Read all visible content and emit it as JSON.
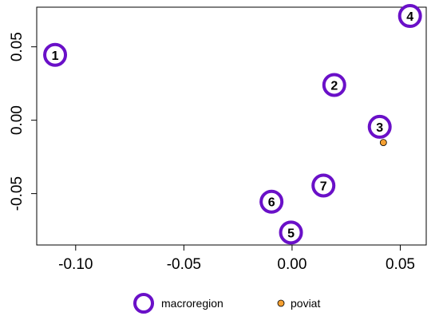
{
  "chart_data": {
    "type": "scatter",
    "title": "",
    "xlabel": "",
    "ylabel": "",
    "xlim": [
      -0.118,
      0.062
    ],
    "ylim": [
      -0.085,
      0.077
    ],
    "xticks": [
      {
        "value": -0.1,
        "label": "-0.10"
      },
      {
        "value": -0.05,
        "label": "-0.05"
      },
      {
        "value": 0.0,
        "label": "0.00"
      },
      {
        "value": 0.05,
        "label": "0.05"
      }
    ],
    "yticks": [
      {
        "value": -0.05,
        "label": "-0.05"
      },
      {
        "value": 0.0,
        "label": "0.00"
      },
      {
        "value": 0.05,
        "label": "0.05"
      }
    ],
    "grid": false,
    "legend_position": "bottom",
    "series": [
      {
        "name": "macroregion",
        "marker": "open-circle",
        "color": "#6a10c8",
        "points": [
          {
            "label": "1",
            "x": -0.1095,
            "y": 0.0445
          },
          {
            "label": "2",
            "x": 0.0195,
            "y": 0.024
          },
          {
            "label": "3",
            "x": 0.0405,
            "y": -0.0045
          },
          {
            "label": "4",
            "x": 0.0545,
            "y": 0.071
          },
          {
            "label": "5",
            "x": -0.0005,
            "y": -0.0765
          },
          {
            "label": "6",
            "x": -0.0095,
            "y": -0.0555
          },
          {
            "label": "7",
            "x": 0.0145,
            "y": -0.0445
          }
        ]
      },
      {
        "name": "poviat",
        "marker": "filled-dot",
        "color": "#f5a032",
        "points": [
          {
            "x": 0.0422,
            "y": -0.0152
          }
        ]
      }
    ]
  }
}
